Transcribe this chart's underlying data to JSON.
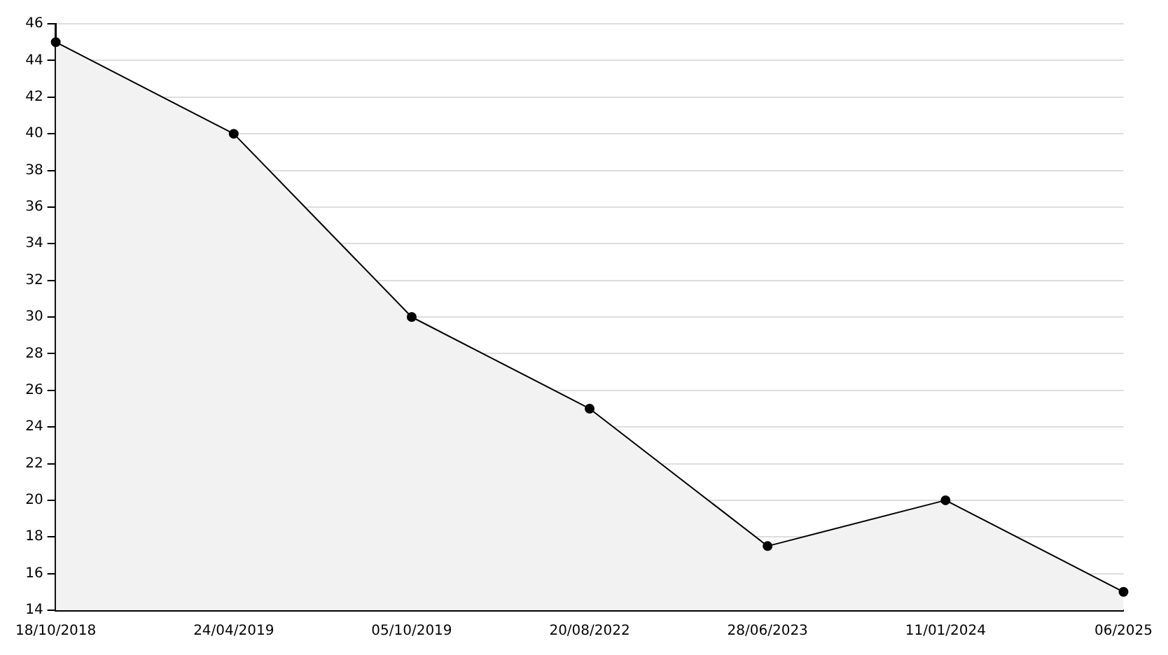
{
  "chart_data": {
    "type": "area",
    "categories": [
      "18/10/2018",
      "24/04/2019",
      "05/10/2019",
      "20/08/2022",
      "28/06/2023",
      "11/01/2024",
      "06/2025"
    ],
    "series": [
      {
        "color": "#000000",
        "values": [
          45,
          40,
          30,
          25,
          17.5,
          20,
          15
        ]
      }
    ],
    "ylim": [
      14,
      46
    ],
    "yticks": [
      14,
      16,
      18,
      20,
      22,
      24,
      26,
      28,
      30,
      32,
      34,
      36,
      38,
      40,
      42,
      44,
      46
    ],
    "grid": "y",
    "legend": false,
    "marker": "circle",
    "line_style": "solid"
  }
}
